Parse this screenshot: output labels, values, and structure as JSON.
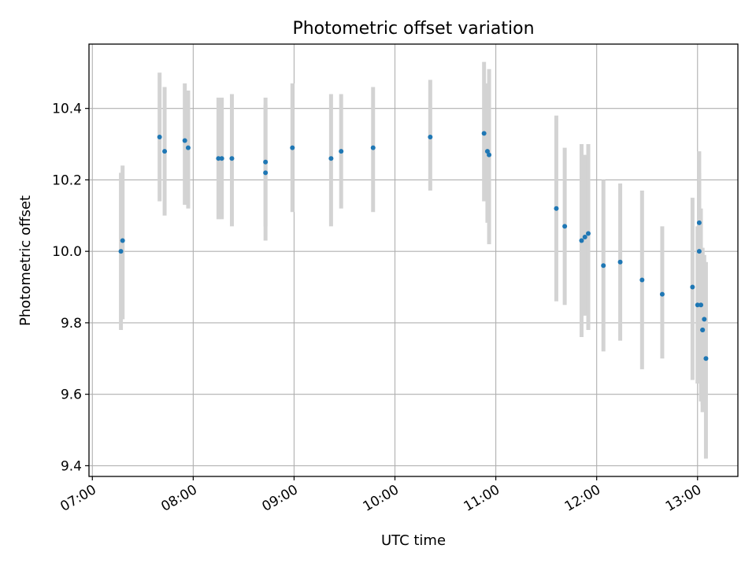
{
  "chart_data": {
    "type": "scatter",
    "title": "Photometric offset variation",
    "xlabel": "UTC time",
    "ylabel": "Photometric offset",
    "xlim": [
      "06:58",
      "13:24"
    ],
    "ylim": [
      9.37,
      10.58
    ],
    "x_ticks": [
      "07:00",
      "08:00",
      "09:00",
      "10:00",
      "11:00",
      "12:00",
      "13:00"
    ],
    "y_ticks": [
      "9.4",
      "9.6",
      "9.8",
      "10.0",
      "10.2",
      "10.4"
    ],
    "grid": true,
    "marker_color": "#1f77b4",
    "errorbar_color": "#d3d3d3",
    "points": [
      {
        "t": "07:17",
        "y": 10.0,
        "lo": 9.78,
        "hi": 10.22
      },
      {
        "t": "07:18",
        "y": 10.03,
        "lo": 9.81,
        "hi": 10.24
      },
      {
        "t": "07:40",
        "y": 10.32,
        "lo": 10.14,
        "hi": 10.5
      },
      {
        "t": "07:43",
        "y": 10.28,
        "lo": 10.1,
        "hi": 10.46
      },
      {
        "t": "07:55",
        "y": 10.31,
        "lo": 10.13,
        "hi": 10.47
      },
      {
        "t": "07:57",
        "y": 10.29,
        "lo": 10.12,
        "hi": 10.45
      },
      {
        "t": "08:15",
        "y": 10.26,
        "lo": 10.09,
        "hi": 10.43
      },
      {
        "t": "08:17",
        "y": 10.26,
        "lo": 10.09,
        "hi": 10.43
      },
      {
        "t": "08:23",
        "y": 10.26,
        "lo": 10.07,
        "hi": 10.44
      },
      {
        "t": "08:43",
        "y": 10.25,
        "lo": 10.07,
        "hi": 10.43
      },
      {
        "t": "08:43",
        "y": 10.22,
        "lo": 10.03,
        "hi": 10.41
      },
      {
        "t": "08:59",
        "y": 10.29,
        "lo": 10.11,
        "hi": 10.47
      },
      {
        "t": "09:22",
        "y": 10.26,
        "lo": 10.07,
        "hi": 10.44
      },
      {
        "t": "09:28",
        "y": 10.28,
        "lo": 10.12,
        "hi": 10.44
      },
      {
        "t": "09:47",
        "y": 10.29,
        "lo": 10.11,
        "hi": 10.46
      },
      {
        "t": "10:21",
        "y": 10.32,
        "lo": 10.17,
        "hi": 10.48
      },
      {
        "t": "10:53",
        "y": 10.33,
        "lo": 10.14,
        "hi": 10.53
      },
      {
        "t": "10:55",
        "y": 10.28,
        "lo": 10.08,
        "hi": 10.47
      },
      {
        "t": "10:56",
        "y": 10.27,
        "lo": 10.02,
        "hi": 10.51
      },
      {
        "t": "11:36",
        "y": 10.12,
        "lo": 9.86,
        "hi": 10.38
      },
      {
        "t": "11:41",
        "y": 10.07,
        "lo": 9.85,
        "hi": 10.29
      },
      {
        "t": "11:51",
        "y": 10.03,
        "lo": 9.76,
        "hi": 10.3
      },
      {
        "t": "11:53",
        "y": 10.04,
        "lo": 9.82,
        "hi": 10.27
      },
      {
        "t": "11:55",
        "y": 10.05,
        "lo": 9.78,
        "hi": 10.3
      },
      {
        "t": "12:04",
        "y": 9.96,
        "lo": 9.72,
        "hi": 10.2
      },
      {
        "t": "12:14",
        "y": 9.97,
        "lo": 9.75,
        "hi": 10.19
      },
      {
        "t": "12:27",
        "y": 9.92,
        "lo": 9.67,
        "hi": 10.17
      },
      {
        "t": "12:39",
        "y": 9.88,
        "lo": 9.7,
        "hi": 10.07
      },
      {
        "t": "12:57",
        "y": 9.9,
        "lo": 9.64,
        "hi": 10.15
      },
      {
        "t": "13:00",
        "y": 9.85,
        "lo": 9.63,
        "hi": 10.07
      },
      {
        "t": "13:01",
        "y": 10.08,
        "lo": 9.88,
        "hi": 10.28
      },
      {
        "t": "13:01",
        "y": 10.0,
        "lo": 9.78,
        "hi": 10.22
      },
      {
        "t": "13:02",
        "y": 9.85,
        "lo": 9.58,
        "hi": 10.12
      },
      {
        "t": "13:03",
        "y": 9.78,
        "lo": 9.57,
        "hi": 10.0
      },
      {
        "t": "13:03",
        "y": 9.78,
        "lo": 9.55,
        "hi": 10.01
      },
      {
        "t": "13:04",
        "y": 9.81,
        "lo": 9.62,
        "hi": 9.99
      },
      {
        "t": "13:05",
        "y": 9.7,
        "lo": 9.42,
        "hi": 9.97
      }
    ]
  }
}
